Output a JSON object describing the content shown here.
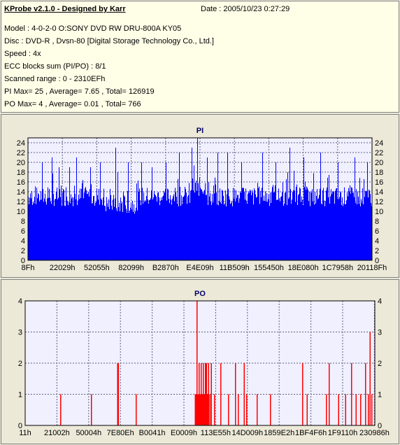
{
  "header": {
    "title": "KProbe v2.1.0 - Designed by Karr",
    "date": "Date : 2005/10/23 0:27:29",
    "lines": [
      "Model : 4-0-2-0 O:SONY    DVD RW DRU-800A  KY05",
      "Disc : DVD-R , Dvsn-80 [Digital Storage Technology Co., Ltd.]",
      "Speed : 4x",
      "ECC blocks sum (PI/PO) : 8/1",
      "Scanned range : 0 - 2310EFh",
      "PI Max= 25 , Average= 7.65 , Total= 126919",
      "PO Max= 4 , Average= 0.01 , Total= 766"
    ]
  },
  "chart_data": [
    {
      "type": "bar",
      "title": "PI",
      "color": "#0000ff",
      "ylim": [
        0,
        25
      ],
      "yticks": [
        0,
        2,
        4,
        6,
        8,
        10,
        12,
        14,
        16,
        18,
        20,
        22,
        24
      ],
      "xlim": [
        0,
        143599
      ],
      "xtick_labels": [
        "8Fh",
        "22029h",
        "52055h",
        "82099h",
        "B2870h",
        "E4E09h",
        "11B509h",
        "155450h",
        "18E080h",
        "1C7958h",
        "20118Fh"
      ],
      "baseline_range": [
        11,
        15
      ],
      "spikes": [
        {
          "x_frac": 0.04,
          "value": 20
        },
        {
          "x_frac": 0.07,
          "value": 21
        },
        {
          "x_frac": 0.09,
          "value": 19
        },
        {
          "x_frac": 0.12,
          "value": 19
        },
        {
          "x_frac": 0.14,
          "value": 21
        },
        {
          "x_frac": 0.18,
          "value": 19
        },
        {
          "x_frac": 0.21,
          "value": 20
        },
        {
          "x_frac": 0.26,
          "value": 18
        },
        {
          "x_frac": 0.255,
          "value": 23
        },
        {
          "x_frac": 0.29,
          "value": 20
        },
        {
          "x_frac": 0.33,
          "value": 20
        },
        {
          "x_frac": 0.36,
          "value": 19
        },
        {
          "x_frac": 0.4,
          "value": 20
        },
        {
          "x_frac": 0.44,
          "value": 22
        },
        {
          "x_frac": 0.475,
          "value": 23
        },
        {
          "x_frac": 0.492,
          "value": 25
        },
        {
          "x_frac": 0.52,
          "value": 21
        },
        {
          "x_frac": 0.55,
          "value": 22
        },
        {
          "x_frac": 0.58,
          "value": 22
        },
        {
          "x_frac": 0.62,
          "value": 20
        },
        {
          "x_frac": 0.68,
          "value": 22
        },
        {
          "x_frac": 0.72,
          "value": 20
        },
        {
          "x_frac": 0.76,
          "value": 23
        },
        {
          "x_frac": 0.8,
          "value": 21
        },
        {
          "x_frac": 0.85,
          "value": 22
        },
        {
          "x_frac": 0.9,
          "value": 20
        },
        {
          "x_frac": 0.95,
          "value": 21
        },
        {
          "x_frac": 0.985,
          "value": 20
        }
      ]
    },
    {
      "type": "bar",
      "title": "PO",
      "color": "#ff0000",
      "ylim": [
        0,
        4
      ],
      "yticks": [
        0,
        1,
        2,
        3,
        4
      ],
      "xlim": [
        0,
        143599
      ],
      "xtick_labels": [
        "11h",
        "21002h",
        "50004h",
        "7E80Eh",
        "B0041h",
        "E0009h",
        "113E55h",
        "14D009h",
        "1859E2h",
        "1BF4F6h",
        "1F9110h",
        "230986h"
      ],
      "bars": [
        {
          "x_frac": 0.1,
          "value": 1
        },
        {
          "x_frac": 0.188,
          "value": 1
        },
        {
          "x_frac": 0.263,
          "value": 2
        },
        {
          "x_frac": 0.265,
          "value": 2
        },
        {
          "x_frac": 0.316,
          "value": 1
        },
        {
          "x_frac": 0.485,
          "value": 1
        },
        {
          "x_frac": 0.488,
          "value": 1
        },
        {
          "x_frac": 0.49,
          "value": 4
        },
        {
          "x_frac": 0.493,
          "value": 1
        },
        {
          "x_frac": 0.496,
          "value": 2
        },
        {
          "x_frac": 0.499,
          "value": 1
        },
        {
          "x_frac": 0.502,
          "value": 2
        },
        {
          "x_frac": 0.505,
          "value": 1
        },
        {
          "x_frac": 0.508,
          "value": 2
        },
        {
          "x_frac": 0.511,
          "value": 1
        },
        {
          "x_frac": 0.514,
          "value": 2
        },
        {
          "x_frac": 0.517,
          "value": 2
        },
        {
          "x_frac": 0.52,
          "value": 1
        },
        {
          "x_frac": 0.523,
          "value": 2
        },
        {
          "x_frac": 0.527,
          "value": 1
        },
        {
          "x_frac": 0.531,
          "value": 2
        },
        {
          "x_frac": 0.54,
          "value": 1
        },
        {
          "x_frac": 0.558,
          "value": 2
        },
        {
          "x_frac": 0.58,
          "value": 1
        },
        {
          "x_frac": 0.6,
          "value": 2
        },
        {
          "x_frac": 0.608,
          "value": 1
        },
        {
          "x_frac": 0.625,
          "value": 2
        },
        {
          "x_frac": 0.632,
          "value": 1
        },
        {
          "x_frac": 0.662,
          "value": 1
        },
        {
          "x_frac": 0.7,
          "value": 1
        },
        {
          "x_frac": 0.792,
          "value": 2
        },
        {
          "x_frac": 0.805,
          "value": 1
        },
        {
          "x_frac": 0.86,
          "value": 1
        },
        {
          "x_frac": 0.868,
          "value": 2
        },
        {
          "x_frac": 0.895,
          "value": 1
        },
        {
          "x_frac": 0.915,
          "value": 1
        },
        {
          "x_frac": 0.932,
          "value": 2
        },
        {
          "x_frac": 0.945,
          "value": 1
        },
        {
          "x_frac": 0.958,
          "value": 1
        },
        {
          "x_frac": 0.972,
          "value": 2
        },
        {
          "x_frac": 0.98,
          "value": 1
        },
        {
          "x_frac": 0.985,
          "value": 3
        },
        {
          "x_frac": 0.99,
          "value": 1
        }
      ]
    }
  ]
}
